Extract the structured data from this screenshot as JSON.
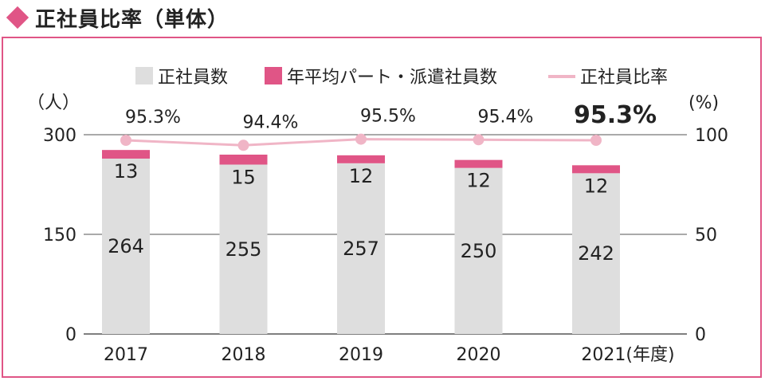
{
  "header": {
    "title": "正社員比率（単体）"
  },
  "chart_data": {
    "type": "bar",
    "categories": [
      "2017",
      "2018",
      "2019",
      "2020",
      "2021"
    ],
    "x_suffix": "(年度)",
    "series": [
      {
        "name": "正社員数",
        "values": [
          264,
          255,
          257,
          250,
          242
        ],
        "color": "#dedede"
      },
      {
        "name": "年平均パート・派遣社員数",
        "values": [
          13,
          15,
          12,
          12,
          12
        ],
        "color": "#e05586"
      },
      {
        "name": "正社員比率",
        "values": [
          95.3,
          94.4,
          95.5,
          95.4,
          95.3
        ],
        "color": "#f0b5c6",
        "type": "line",
        "axis": "right"
      }
    ],
    "ratio_labels": [
      "95.3%",
      "94.4%",
      "95.5%",
      "95.4%",
      "95.3%"
    ],
    "ylabel_left": "（人）",
    "ylabel_right": "(%)",
    "ylim_left": [
      0,
      300
    ],
    "ylim_right": [
      0,
      100
    ],
    "yticks_left": [
      "0",
      "150",
      "300"
    ],
    "yticks_right": [
      "0",
      "50",
      "100"
    ],
    "stacked": true,
    "grid": true,
    "legend": "top"
  }
}
